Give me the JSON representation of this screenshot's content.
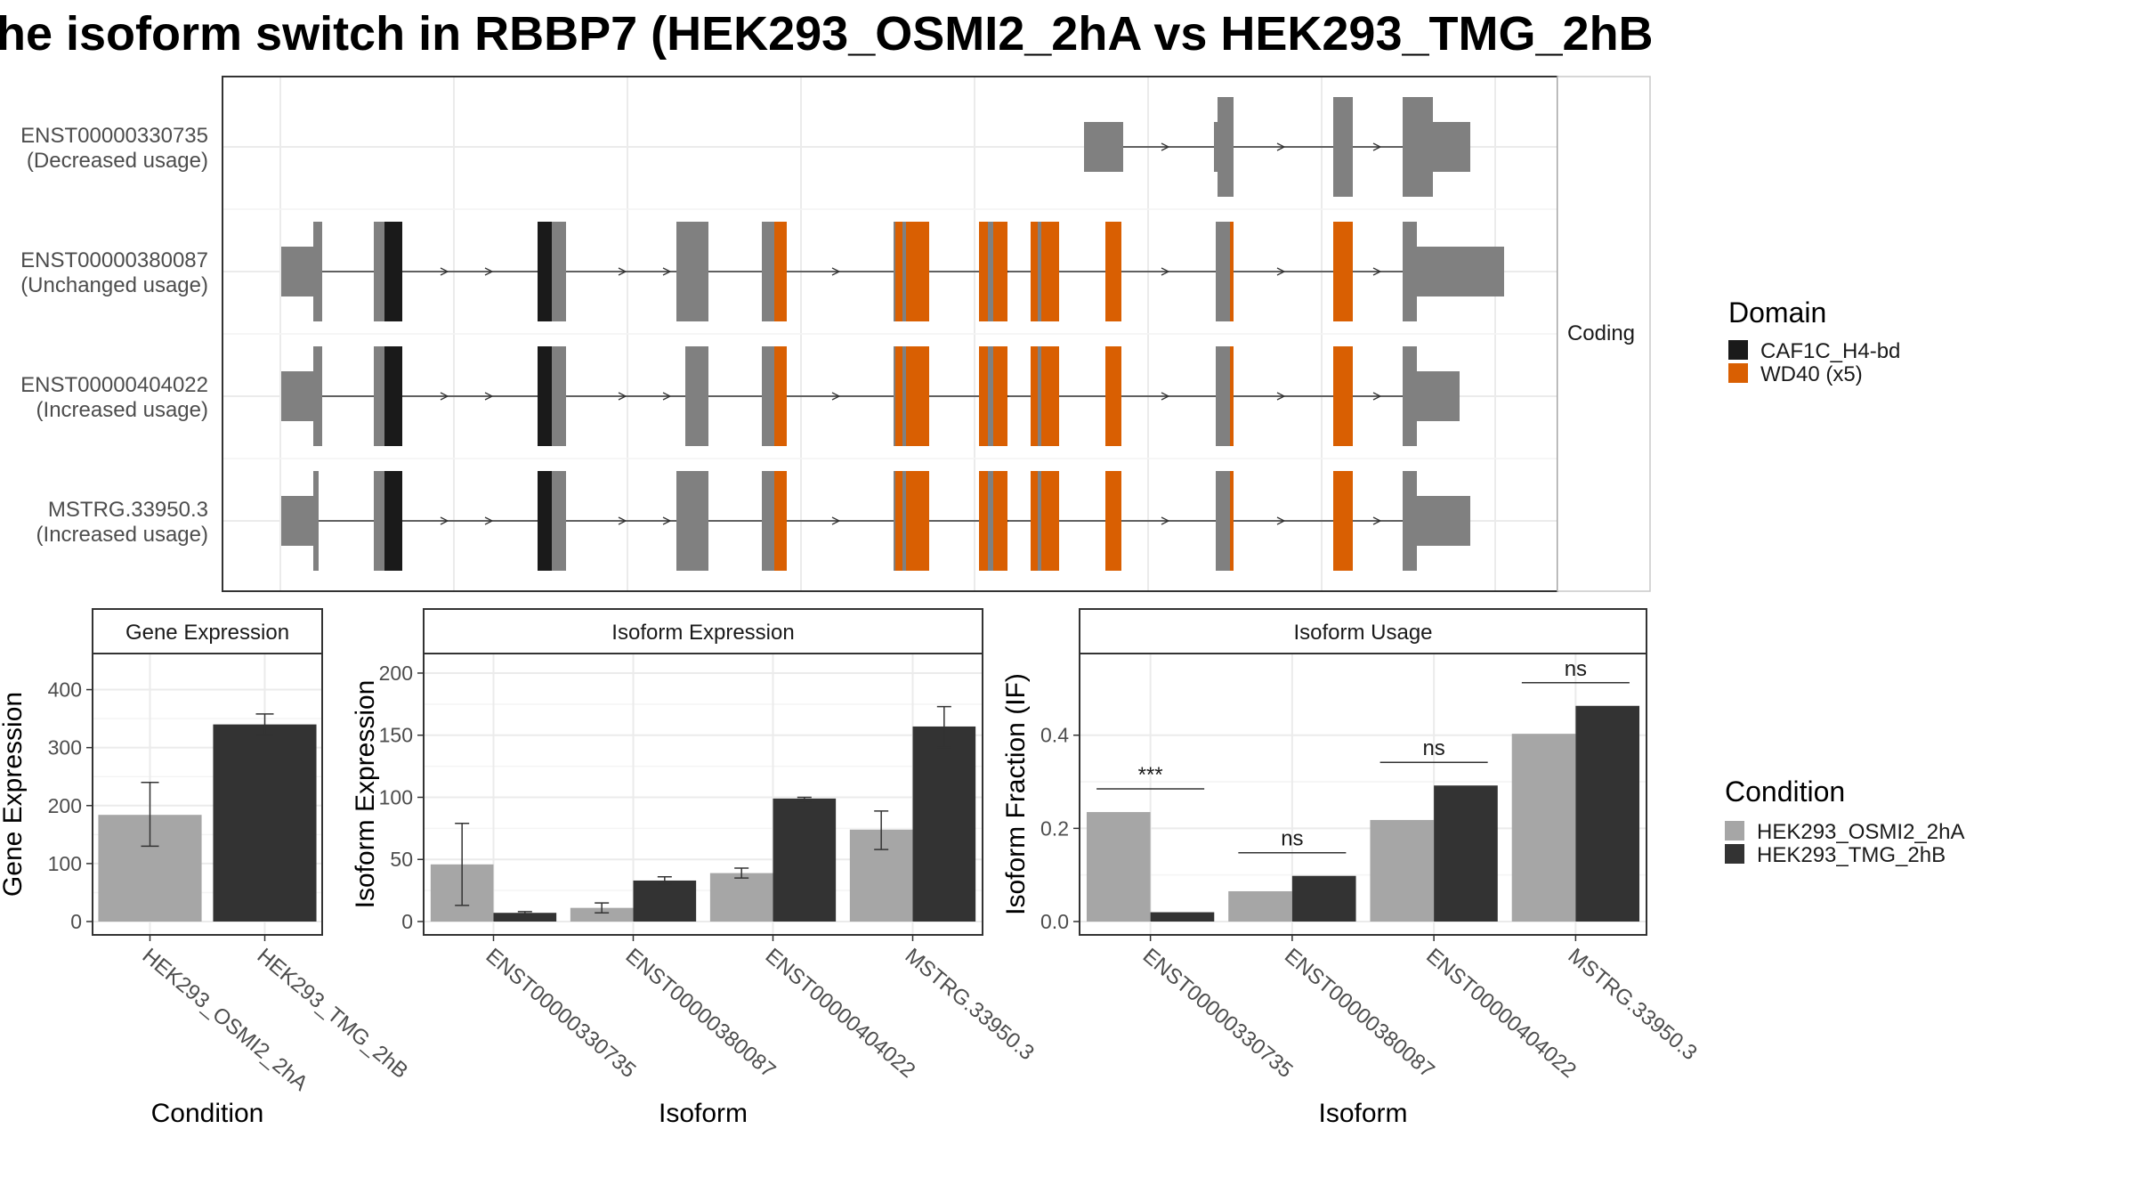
{
  "title": "he isoform switch in RBBP7 (HEK293_OSMI2_2hA vs HEK293_TMG_2hB",
  "colors": {
    "exon": "#808080",
    "caf1c": "#1a1a1a",
    "wd40": "#d95f02",
    "cond_a": "#a6a6a6",
    "cond_b": "#333333",
    "grid": "#ebebeb",
    "frame": "#333333"
  },
  "structure": {
    "facet_label": "Coding",
    "transcripts": [
      {
        "id": "ENST00000330735",
        "usage": "(Decreased usage)"
      },
      {
        "id": "ENST00000380087",
        "usage": "(Unchanged usage)"
      },
      {
        "id": "ENST00000404022",
        "usage": "(Increased usage)"
      },
      {
        "id": "MSTRG.33950.3",
        "usage": "(Increased usage)"
      }
    ],
    "domain_legend": {
      "title": "Domain",
      "items": [
        {
          "label": "CAF1C_H4-bd",
          "color": "#1a1a1a"
        },
        {
          "label": "WD40 (x5)",
          "color": "#d95f02"
        }
      ]
    }
  },
  "condition_legend": {
    "title": "Condition",
    "items": [
      {
        "label": "HEK293_OSMI2_2hA",
        "color": "#a6a6a6"
      },
      {
        "label": "HEK293_TMG_2hB",
        "color": "#333333"
      }
    ]
  },
  "chart_data": [
    {
      "type": "bar",
      "panel_title": "Gene Expression",
      "categories": [
        "HEK293_OSMI2_2hA",
        "HEK293_TMG_2hB"
      ],
      "values": [
        184,
        340
      ],
      "error_low": [
        130,
        322
      ],
      "error_high": [
        240,
        358
      ],
      "ylim": [
        0,
        450
      ],
      "yticks": [
        0,
        100,
        200,
        300,
        400
      ],
      "xlabel": "Condition",
      "ylabel": "Gene Expression",
      "grid": true
    },
    {
      "type": "bar",
      "panel_title": "Isoform Expression",
      "categories": [
        "ENST00000330735",
        "ENST00000380087",
        "ENST00000404022",
        "MSTRG.33950.3"
      ],
      "series": [
        {
          "name": "HEK293_OSMI2_2hA",
          "values": [
            46,
            11,
            39,
            74
          ],
          "error_low": [
            13,
            7,
            35,
            58
          ],
          "error_high": [
            79,
            15,
            43,
            89
          ]
        },
        {
          "name": "HEK293_TMG_2hB",
          "values": [
            7,
            33,
            99,
            157
          ],
          "error_low": [
            6,
            30,
            97,
            140
          ],
          "error_high": [
            8,
            36,
            100,
            173
          ]
        }
      ],
      "ylim": [
        0,
        210
      ],
      "yticks": [
        0,
        50,
        100,
        150,
        200
      ],
      "xlabel": "Isoform",
      "ylabel": "Isoform Expression",
      "grid": true
    },
    {
      "type": "bar",
      "panel_title": "Isoform Usage",
      "categories": [
        "ENST00000330735",
        "ENST00000380087",
        "ENST00000404022",
        "MSTRG.33950.3"
      ],
      "series": [
        {
          "name": "HEK293_OSMI2_2hA",
          "values": [
            0.235,
            0.065,
            0.218,
            0.403
          ]
        },
        {
          "name": "HEK293_TMG_2hB",
          "values": [
            0.02,
            0.098,
            0.292,
            0.463
          ]
        }
      ],
      "significance": [
        "***",
        "ns",
        "ns",
        "ns"
      ],
      "ylim": [
        0,
        0.56
      ],
      "yticks": [
        0,
        0.2,
        0.4
      ],
      "ytick_labels": [
        "0.0",
        "0.2",
        "0.4"
      ],
      "xlabel": "Isoform",
      "ylabel": "Isoform Fraction (IF)",
      "grid": true
    }
  ]
}
